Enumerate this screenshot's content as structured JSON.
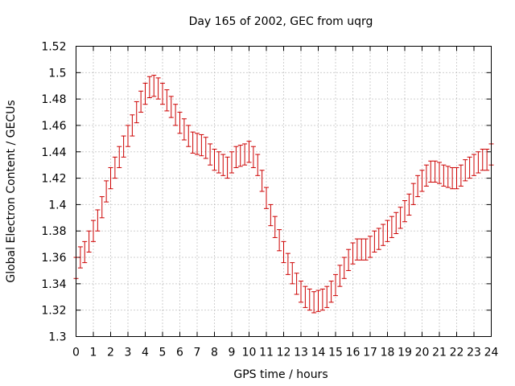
{
  "chart_data": {
    "type": "scatter",
    "title": "Day 165 of 2002, GEC from uqrg",
    "xlabel": "GPS time / hours",
    "ylabel": "Global Electron Content / GECUs",
    "xlim": [
      0,
      24
    ],
    "ylim": [
      1.3,
      1.52
    ],
    "x_ticks": [
      "0",
      "1",
      "2",
      "3",
      "4",
      "5",
      "6",
      "7",
      "8",
      "9",
      "10",
      "11",
      "12",
      "13",
      "14",
      "15",
      "16",
      "17",
      "18",
      "19",
      "20",
      "21",
      "22",
      "23",
      "24"
    ],
    "y_ticks": [
      "1.3",
      "1.32",
      "1.34",
      "1.36",
      "1.38",
      "1.4",
      "1.42",
      "1.44",
      "1.46",
      "1.48",
      "1.5",
      "1.52"
    ],
    "grid": true,
    "series_color": "#cc0000",
    "series": [
      {
        "x": [
          0,
          0.25,
          0.5,
          0.75,
          1,
          1.25,
          1.5,
          1.75,
          2,
          2.25,
          2.5,
          2.75,
          3,
          3.25,
          3.5,
          3.75,
          4,
          4.25,
          4.5,
          4.75,
          5,
          5.25,
          5.5,
          5.75,
          6,
          6.25,
          6.5,
          6.75,
          7,
          7.25,
          7.5,
          7.75,
          8,
          8.25,
          8.5,
          8.75,
          9,
          9.25,
          9.5,
          9.75,
          10,
          10.25,
          10.5,
          10.75,
          11,
          11.25,
          11.5,
          11.75,
          12,
          12.25,
          12.5,
          12.75,
          13,
          13.25,
          13.5,
          13.75,
          14,
          14.25,
          14.5,
          14.75,
          15,
          15.25,
          15.5,
          15.75,
          16,
          16.25,
          16.5,
          16.75,
          17,
          17.25,
          17.5,
          17.75,
          18,
          18.25,
          18.5,
          18.75,
          19,
          19.25,
          19.5,
          19.75,
          20,
          20.25,
          20.5,
          20.75,
          21,
          21.25,
          21.5,
          21.75,
          22,
          22.25,
          22.5,
          22.75,
          23,
          23.25,
          23.5,
          23.75,
          24
        ],
        "y": [
          1.352,
          1.36,
          1.364,
          1.372,
          1.38,
          1.388,
          1.398,
          1.41,
          1.42,
          1.428,
          1.436,
          1.444,
          1.452,
          1.46,
          1.47,
          1.478,
          1.484,
          1.489,
          1.49,
          1.488,
          1.484,
          1.479,
          1.474,
          1.468,
          1.462,
          1.457,
          1.452,
          1.447,
          1.446,
          1.445,
          1.443,
          1.438,
          1.434,
          1.432,
          1.43,
          1.428,
          1.432,
          1.436,
          1.437,
          1.438,
          1.44,
          1.436,
          1.43,
          1.418,
          1.405,
          1.392,
          1.383,
          1.373,
          1.364,
          1.355,
          1.348,
          1.34,
          1.334,
          1.33,
          1.328,
          1.326,
          1.327,
          1.328,
          1.33,
          1.334,
          1.339,
          1.346,
          1.352,
          1.358,
          1.363,
          1.366,
          1.366,
          1.366,
          1.368,
          1.372,
          1.374,
          1.377,
          1.38,
          1.383,
          1.386,
          1.39,
          1.395,
          1.4,
          1.408,
          1.414,
          1.418,
          1.422,
          1.425,
          1.425,
          1.424,
          1.422,
          1.421,
          1.42,
          1.42,
          1.422,
          1.426,
          1.428,
          1.43,
          1.432,
          1.434,
          1.434,
          1.438
        ],
        "error": 0.008
      }
    ]
  }
}
